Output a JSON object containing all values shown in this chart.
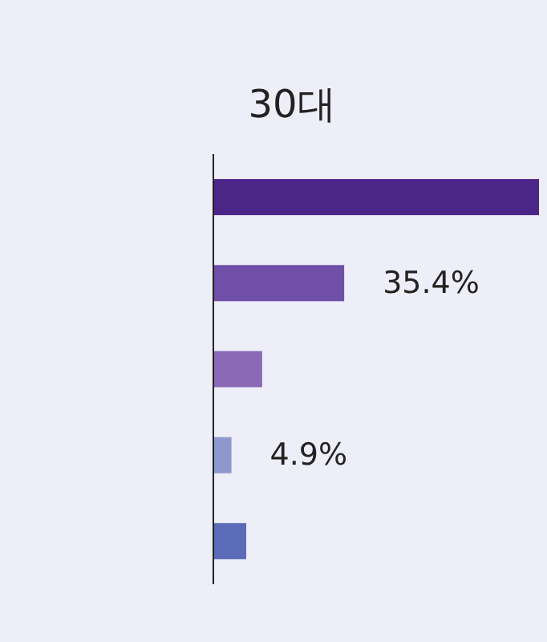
{
  "chart_data": {
    "type": "bar",
    "orientation": "horizontal",
    "title": "30대",
    "categories": [
      null,
      null,
      null,
      null,
      null
    ],
    "values": [
      88.1,
      35.4,
      13.2,
      4.9,
      8.9
    ],
    "colors": [
      "#4b2688",
      "#6f4fa8",
      "#8a68b5",
      "#8e98cc",
      "#5b6bb8"
    ],
    "value_labels": [
      null,
      "35.4%",
      null,
      "4.9%",
      null
    ],
    "xlim": [
      0,
      89.4
    ]
  }
}
